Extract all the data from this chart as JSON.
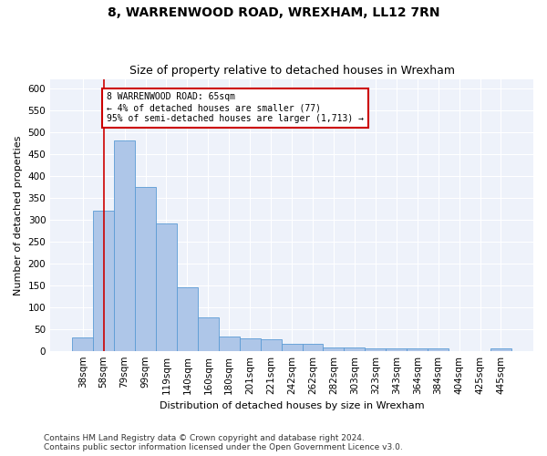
{
  "title": "8, WARRENWOOD ROAD, WREXHAM, LL12 7RN",
  "subtitle": "Size of property relative to detached houses in Wrexham",
  "xlabel": "Distribution of detached houses by size in Wrexham",
  "ylabel": "Number of detached properties",
  "categories": [
    "38sqm",
    "58sqm",
    "79sqm",
    "99sqm",
    "119sqm",
    "140sqm",
    "160sqm",
    "180sqm",
    "201sqm",
    "221sqm",
    "242sqm",
    "262sqm",
    "282sqm",
    "303sqm",
    "323sqm",
    "343sqm",
    "364sqm",
    "384sqm",
    "404sqm",
    "425sqm",
    "445sqm"
  ],
  "values": [
    30,
    320,
    480,
    375,
    290,
    145,
    77,
    32,
    28,
    27,
    15,
    15,
    8,
    7,
    5,
    5,
    5,
    5,
    0,
    0,
    5
  ],
  "bar_color": "#aec6e8",
  "bar_edge_color": "#5b9bd5",
  "vline_x": 1,
  "vline_color": "#cc0000",
  "annotation_line1": "8 WARRENWOOD ROAD: 65sqm",
  "annotation_line2": "← 4% of detached houses are smaller (77)",
  "annotation_line3": "95% of semi-detached houses are larger (1,713) →",
  "annotation_box_color": "#cc0000",
  "ylim": [
    0,
    620
  ],
  "yticks": [
    0,
    50,
    100,
    150,
    200,
    250,
    300,
    350,
    400,
    450,
    500,
    550,
    600
  ],
  "footer_text": "Contains HM Land Registry data © Crown copyright and database right 2024.\nContains public sector information licensed under the Open Government Licence v3.0.",
  "bg_color": "#eef2fa",
  "grid_color": "#ffffff",
  "title_fontsize": 10,
  "subtitle_fontsize": 9,
  "label_fontsize": 8,
  "tick_fontsize": 7.5,
  "footer_fontsize": 6.5
}
